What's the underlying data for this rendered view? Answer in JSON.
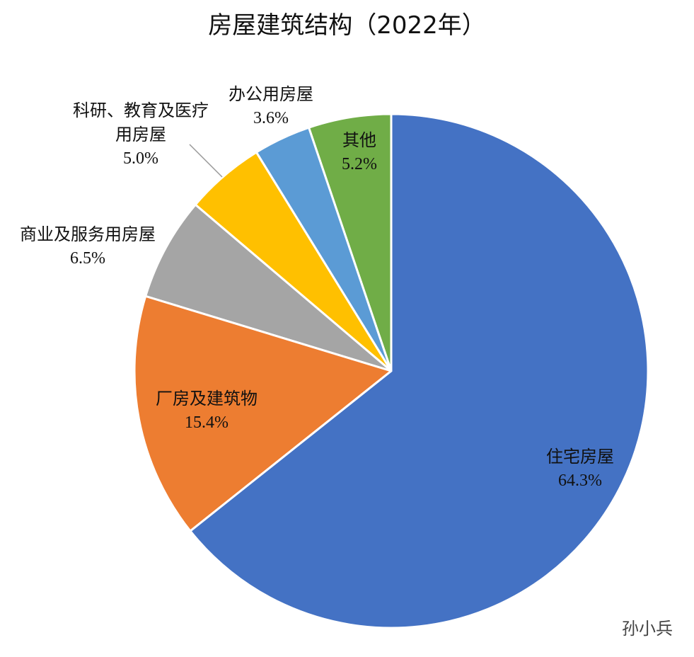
{
  "chart_data": {
    "type": "pie",
    "title": "房屋建筑结构（2022年）",
    "categories": [
      "住宅房屋",
      "厂房及建筑物",
      "商业及服务用房屋",
      "科研、教育及医疗用房屋",
      "办公用房屋",
      "其他"
    ],
    "values": [
      64.3,
      15.4,
      6.5,
      5.0,
      3.6,
      5.2
    ],
    "value_labels": [
      "64.3%",
      "15.4%",
      "6.5%",
      "5.0%",
      "3.6%",
      "5.2%"
    ],
    "colors": [
      "#4472c4",
      "#ed7d31",
      "#a5a5a5",
      "#ffc000",
      "#5b9bd5",
      "#70ad47"
    ]
  },
  "watermark": "孙小兵"
}
